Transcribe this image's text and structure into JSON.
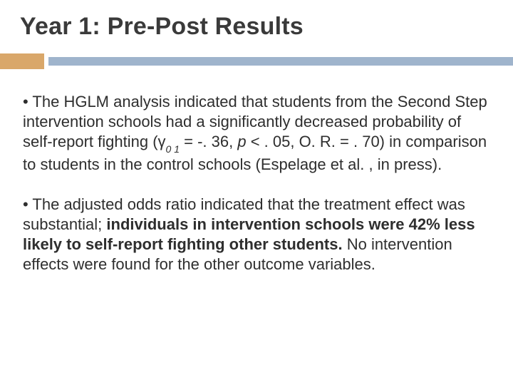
{
  "slide": {
    "title": "Year 1:  Pre-Post Results",
    "accent_color": "#d9a76a",
    "bar_color": "#9fb4cc",
    "background_color": "#ffffff",
    "title_color": "#3a3a3a",
    "text_color": "#2e2e2e",
    "title_fontsize": 34,
    "body_fontsize": 22,
    "bullets": [
      {
        "leader": "• The HGLM analysis indicated that students from the Second Step intervention schools had a significantly decreased probability of self-report fighting (γ",
        "subscript": "0 1",
        "mid": " = -. 36, ",
        "italic_p": "p",
        "mid2": " < . 05, O. R. = . 70) in comparison to students in the control schools (Espelage et al. , in press)."
      },
      {
        "leader": "• The adjusted odds ratio indicated that the treatment effect was substantial; ",
        "bold": "individuals in intervention schools were 42% less likely to self-report fighting other students. ",
        "tail": " No intervention effects were found for the other outcome variables."
      }
    ]
  }
}
